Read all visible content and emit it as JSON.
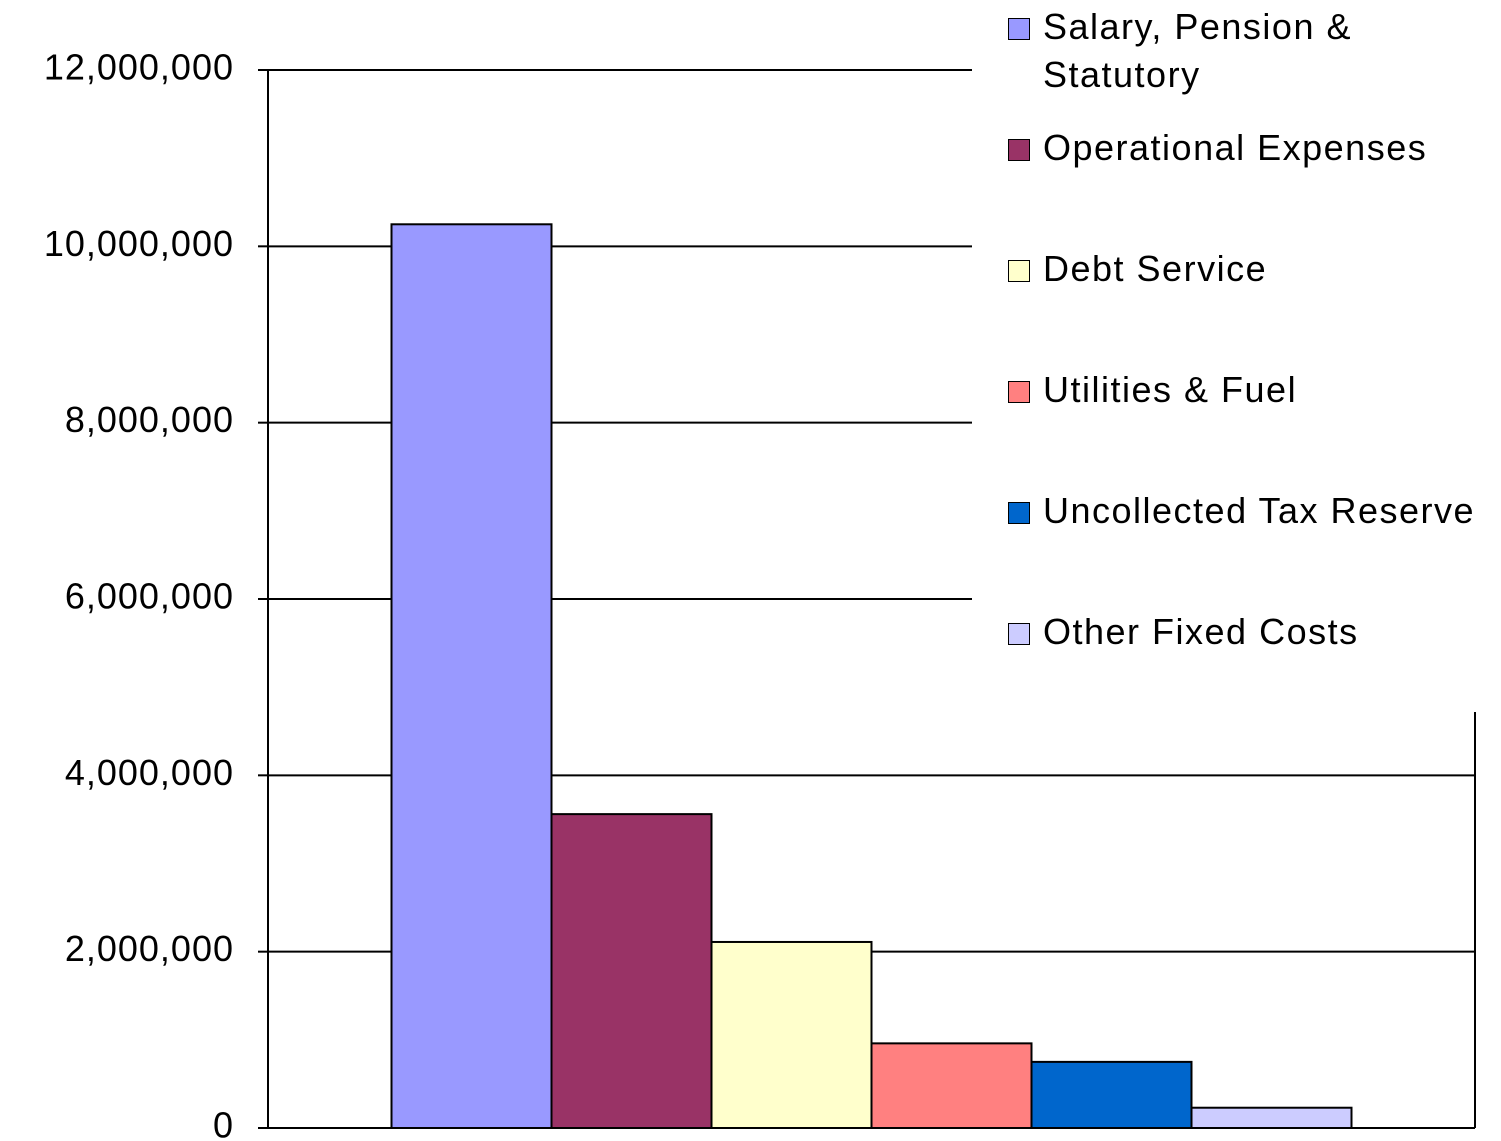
{
  "chart_data": {
    "type": "bar",
    "categories": [
      null
    ],
    "series": [
      {
        "name": "Salary, Pension & Statutory",
        "color": "#9999ff",
        "values": [
          10250000
        ]
      },
      {
        "name": "Operational Expenses",
        "color": "#993366",
        "values": [
          3560000
        ]
      },
      {
        "name": "Debt Service",
        "color": "#ffffcc",
        "values": [
          2110000
        ]
      },
      {
        "name": "Utilities & Fuel",
        "color": "#ff8080",
        "values": [
          960000
        ]
      },
      {
        "name": "Uncollected Tax Reserve",
        "color": "#0066cc",
        "values": [
          750000
        ]
      },
      {
        "name": "Other Fixed Costs",
        "color": "#ccccff",
        "values": [
          230000
        ]
      }
    ],
    "ylim": [
      0,
      12000000
    ],
    "yticks": [
      0,
      {
        "value": 2000000,
        "label": "2,000,000"
      },
      {
        "value": 4000000,
        "label": "4,000,000"
      },
      {
        "value": 6000000,
        "label": "6,000,000"
      },
      {
        "value": 8000000,
        "label": "8,000,000"
      },
      {
        "value": 10000000,
        "label": "10,000,000"
      },
      {
        "value": 12000000,
        "label": "12,000,000"
      }
    ],
    "grid": true,
    "legend": "top-right"
  }
}
